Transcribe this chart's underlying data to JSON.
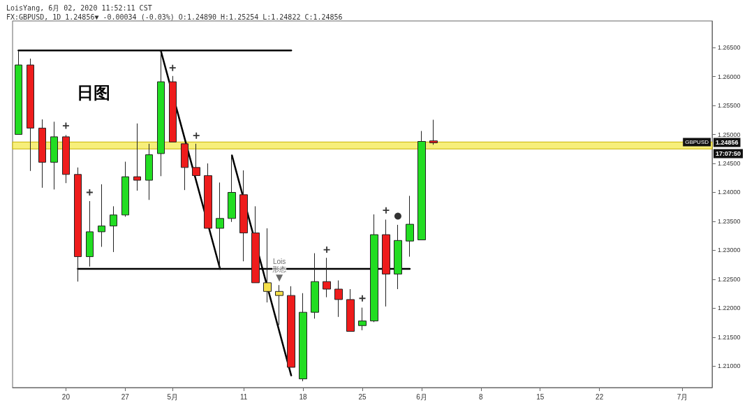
{
  "chart_data": {
    "type": "candlestick",
    "title": "LoisYang, 6月 02, 2020 11:52:11 CST",
    "subtitle": "FX:GBPUSD, 1D 1.24856▼ -0.00034 (-0.03%) O:1.24890 H:1.25254 L:1.24822 C:1.24856",
    "categories": [
      null,
      null,
      null,
      null,
      "20",
      null,
      null,
      null,
      null,
      "27",
      null,
      null,
      null,
      "5月",
      null,
      null,
      null,
      null,
      null,
      "11",
      null,
      null,
      null,
      null,
      "18",
      null,
      null,
      null,
      null,
      "25",
      null,
      null,
      null,
      null,
      "6月",
      null,
      null,
      null,
      null,
      "8",
      null,
      null,
      null,
      null,
      "15",
      null,
      null,
      null,
      null,
      "22",
      null,
      null,
      null,
      null,
      null,
      null,
      "7月",
      null,
      null
    ],
    "ohlc": [
      [
        1.25,
        1.2645,
        1.25,
        1.262
      ],
      [
        1.262,
        1.2631,
        1.2437,
        1.2511
      ],
      [
        1.2511,
        1.2526,
        1.2408,
        1.2452
      ],
      [
        1.2452,
        1.2522,
        1.2405,
        1.2496
      ],
      [
        1.2496,
        1.2499,
        1.2416,
        1.2431
      ],
      [
        1.2431,
        1.2443,
        1.2246,
        1.2289
      ],
      [
        1.2289,
        1.2385,
        1.2272,
        1.2332
      ],
      [
        1.2332,
        1.2414,
        1.2306,
        1.2342
      ],
      [
        1.2342,
        1.2376,
        1.2297,
        1.2361
      ],
      [
        1.2361,
        1.2453,
        1.2358,
        1.2427
      ],
      [
        1.2427,
        1.2519,
        1.2403,
        1.2421
      ],
      [
        1.2421,
        1.2484,
        1.2387,
        1.2465
      ],
      [
        1.2467,
        1.2645,
        1.2428,
        1.2591
      ],
      [
        1.2591,
        1.2601,
        1.2487,
        1.2487
      ],
      [
        1.2484,
        1.2484,
        1.2404,
        1.2443
      ],
      [
        1.2443,
        1.2484,
        1.2429,
        1.2429
      ],
      [
        1.2429,
        1.245,
        1.2338,
        1.2338
      ],
      [
        1.2338,
        1.2417,
        1.2268,
        1.2355
      ],
      [
        1.2355,
        1.2464,
        1.2349,
        1.24
      ],
      [
        1.2396,
        1.2438,
        1.2281,
        1.233
      ],
      [
        1.233,
        1.2376,
        1.2244,
        1.2244
      ],
      [
        1.2244,
        1.2338,
        1.221,
        1.2229
      ],
      [
        1.2229,
        1.224,
        1.2171,
        1.2222
      ],
      [
        1.2222,
        1.2238,
        1.2098,
        1.2098
      ],
      [
        1.2078,
        1.2226,
        1.2074,
        1.2193
      ],
      [
        1.2193,
        1.2295,
        1.2182,
        1.2246
      ],
      [
        1.2246,
        1.2287,
        1.2219,
        1.2233
      ],
      [
        1.2233,
        1.2248,
        1.2185,
        1.2215
      ],
      [
        1.2215,
        1.2233,
        1.216,
        1.216
      ],
      [
        1.217,
        1.2201,
        1.2162,
        1.2178
      ],
      [
        1.2178,
        1.2362,
        1.2176,
        1.2327
      ],
      [
        1.2327,
        1.2353,
        1.2203,
        1.2259
      ],
      [
        1.2259,
        1.2344,
        1.2233,
        1.2317
      ],
      [
        1.2316,
        1.2394,
        1.2289,
        1.2345
      ],
      [
        1.2318,
        1.2506,
        1.2318,
        1.2488
      ],
      [
        1.2489,
        1.25254,
        1.24822,
        1.24856
      ],
      null,
      null,
      null,
      null,
      null,
      null,
      null,
      null,
      null,
      null,
      null,
      null,
      null,
      null,
      null,
      null,
      null,
      null,
      null,
      null,
      null,
      null,
      null
    ],
    "colors": [
      "#22dd22",
      "#ee1c1c",
      "#ee1c1c",
      "#22dd22",
      "#ee1c1c",
      "#ee1c1c",
      "#22dd22",
      "#22dd22",
      "#22dd22",
      "#22dd22",
      "#ee1c1c",
      "#22dd22",
      "#22dd22",
      "#ee1c1c",
      "#ee1c1c",
      "#ee1c1c",
      "#ee1c1c",
      "#22dd22",
      "#22dd22",
      "#ee1c1c",
      "#ee1c1c",
      "#f5e04a",
      "#f5e04a",
      "#ee1c1c",
      "#22dd22",
      "#22dd22",
      "#ee1c1c",
      "#ee1c1c",
      "#ee1c1c",
      "#22dd22",
      "#22dd22",
      "#ee1c1c",
      "#22dd22",
      "#22dd22",
      "#22dd22",
      "#ee1c1c",
      null,
      null,
      null,
      null,
      null,
      null,
      null,
      null,
      null,
      null,
      null,
      null,
      null,
      null,
      null,
      null,
      null,
      null,
      null,
      null,
      null,
      null,
      null
    ],
    "series": [
      {
        "type": "line",
        "color": "#000000",
        "values": [
          1.2645,
          null,
          null,
          null,
          null,
          null,
          null,
          null,
          null,
          null,
          null,
          null,
          null,
          null,
          null,
          null,
          null,
          null,
          null,
          null,
          null,
          null,
          null,
          1.2645,
          null,
          null,
          null,
          null,
          null,
          null,
          null,
          null,
          null,
          null,
          null,
          null,
          null,
          null,
          null,
          null,
          null,
          null,
          null,
          null,
          null,
          null,
          null,
          null,
          null,
          null,
          null,
          null,
          null,
          null,
          null,
          null,
          null,
          null,
          null
        ]
      },
      {
        "type": "line",
        "color": "#000000",
        "values": [
          null,
          null,
          null,
          null,
          null,
          null,
          null,
          null,
          null,
          null,
          null,
          null,
          1.2645,
          null,
          null,
          null,
          null,
          1.2268,
          null,
          null,
          null,
          null,
          null,
          null,
          null,
          null,
          null,
          null,
          null,
          null,
          null,
          null,
          null,
          null,
          null,
          null,
          null,
          null,
          null,
          null,
          null,
          null,
          null,
          null,
          null,
          null,
          null,
          null,
          null,
          null,
          null,
          null,
          null,
          null,
          null,
          null,
          null,
          null,
          null
        ]
      },
      {
        "type": "line",
        "color": "#000000",
        "values": [
          null,
          null,
          null,
          null,
          null,
          1.2268,
          null,
          null,
          null,
          null,
          null,
          null,
          null,
          null,
          null,
          null,
          null,
          null,
          null,
          null,
          null,
          null,
          null,
          null,
          null,
          null,
          null,
          null,
          null,
          null,
          null,
          null,
          null,
          1.2268,
          null,
          null,
          null,
          null,
          null,
          null,
          null,
          null,
          null,
          null,
          null,
          null,
          null,
          null,
          null,
          null,
          null,
          null,
          null,
          null,
          null,
          null,
          null,
          null,
          null
        ]
      },
      {
        "type": "line",
        "color": "#000000",
        "values": [
          null,
          null,
          null,
          null,
          null,
          null,
          null,
          null,
          null,
          null,
          null,
          null,
          null,
          null,
          null,
          null,
          null,
          null,
          1.2464,
          null,
          null,
          null,
          null,
          1.2084,
          null,
          null,
          null,
          null,
          null,
          null,
          null,
          null,
          null,
          null,
          null,
          null,
          null,
          null,
          null,
          null,
          null,
          null,
          null,
          null,
          null,
          null,
          null,
          null,
          null,
          null,
          null,
          null,
          null,
          null,
          null,
          null,
          null,
          null,
          null
        ]
      },
      {
        "type": "scatter",
        "marker": "cross",
        "color": "#000000",
        "values": [
          null,
          null,
          null,
          null,
          1.2515,
          null,
          1.24,
          null,
          null,
          null,
          null,
          null,
          null,
          1.2615,
          null,
          1.2498,
          null,
          null,
          null,
          null,
          null,
          null,
          null,
          null,
          null,
          null,
          1.2301,
          null,
          null,
          1.2217,
          null,
          1.2369,
          null,
          null,
          null,
          null,
          null,
          null,
          null,
          null,
          null,
          null,
          null,
          null,
          null,
          null,
          null,
          null,
          null,
          null,
          null,
          null,
          null,
          null,
          null,
          null,
          null,
          null,
          null
        ]
      },
      {
        "type": "scatter",
        "marker": "circle",
        "color": "#000000",
        "values": [
          null,
          null,
          null,
          null,
          null,
          null,
          null,
          null,
          null,
          null,
          null,
          null,
          null,
          null,
          null,
          null,
          null,
          null,
          null,
          null,
          null,
          null,
          null,
          null,
          null,
          null,
          null,
          null,
          null,
          null,
          null,
          null,
          1.2359,
          null,
          null,
          null,
          null,
          null,
          null,
          null,
          null,
          null,
          null,
          null,
          null,
          null,
          null,
          null,
          null,
          null,
          null,
          null,
          null,
          null,
          null,
          null,
          null,
          null,
          null
        ]
      },
      {
        "type": "scatter",
        "marker": "triangle",
        "name": "Lois\n形态",
        "color": "#444444",
        "values": [
          null,
          null,
          null,
          null,
          null,
          null,
          null,
          null,
          null,
          null,
          null,
          null,
          null,
          null,
          null,
          null,
          null,
          null,
          null,
          null,
          null,
          null,
          1.2252,
          null,
          null,
          null,
          null,
          null,
          null,
          null,
          null,
          null,
          null,
          null,
          null,
          null,
          null,
          null,
          null,
          null,
          null,
          null,
          null,
          null,
          null,
          null,
          null,
          null,
          null,
          null,
          null,
          null,
          null,
          null,
          null,
          null,
          null,
          null,
          null
        ]
      }
    ],
    "bands": [
      {
        "axis": "y",
        "from": 1.2475,
        "to": 1.2487,
        "color": "#f7ef7a"
      }
    ],
    "annotations": [
      "日图",
      {
        "text": "GBPUSD",
        "y": 1.24856
      },
      {
        "text": "1.24856",
        "y": 1.24856
      },
      "17:07:50"
    ],
    "line_style": "solid",
    "ylim": [
      1.2063,
      1.2696
    ],
    "yticks": [
      {
        "value": 1.21,
        "label": "1.21000"
      },
      {
        "value": 1.215,
        "label": "1.21500"
      },
      {
        "value": 1.22,
        "label": "1.22000"
      },
      {
        "value": 1.225,
        "label": "1.22500"
      },
      {
        "value": 1.23,
        "label": "1.23000"
      },
      {
        "value": 1.235,
        "label": "1.23500"
      },
      {
        "value": 1.24,
        "label": "1.24000"
      },
      {
        "value": 1.245,
        "label": "1.24500"
      },
      {
        "value": 1.25,
        "label": "1.25000"
      },
      {
        "value": 1.255,
        "label": "1.25500"
      },
      {
        "value": 1.26,
        "label": "1.26000"
      },
      {
        "value": 1.265,
        "label": "1.26500"
      }
    ]
  }
}
